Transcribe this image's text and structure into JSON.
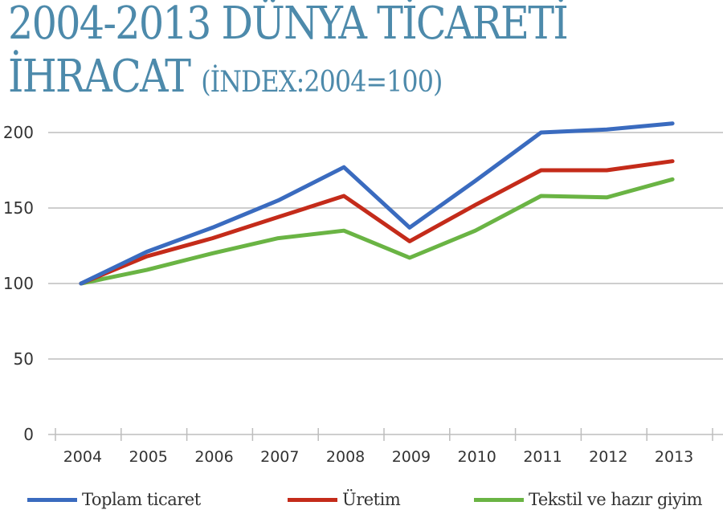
{
  "title": {
    "line1": "2004-2013 DÜNYA TİCARETİ",
    "line2": "İHRACAT",
    "subtitle": "(İNDEX:2004=100)"
  },
  "colors": {
    "title": "#4d8aab",
    "toplam": "#3a6bbf",
    "uretim": "#c42b1a",
    "tekstil": "#6ab444",
    "grid": "#bdbdbd"
  },
  "chart_data": {
    "type": "line",
    "title": "2004-2013 DÜNYA TİCARETİ İHRACAT (İNDEX:2004=100)",
    "xlabel": "",
    "ylabel": "",
    "categories": [
      "2004",
      "2005",
      "2006",
      "2007",
      "2008",
      "2009",
      "2010",
      "2011",
      "2012",
      "2013"
    ],
    "yticks": [
      "0",
      "50",
      "100",
      "150",
      "200"
    ],
    "ylim": [
      0,
      200
    ],
    "grid": true,
    "legend_position": "bottom",
    "series": [
      {
        "name": "Toplam ticaret",
        "color": "#3a6bbf",
        "values": [
          100,
          121,
          137,
          155,
          177,
          137,
          168,
          200,
          202,
          206
        ]
      },
      {
        "name": "Üretim",
        "color": "#c42b1a",
        "values": [
          100,
          118,
          130,
          144,
          158,
          128,
          152,
          175,
          175,
          181
        ]
      },
      {
        "name": "Tekstil ve hazır giyim",
        "color": "#6ab444",
        "values": [
          100,
          109,
          120,
          130,
          135,
          117,
          135,
          158,
          157,
          169
        ]
      }
    ]
  },
  "legend": [
    {
      "label": "Toplam ticaret"
    },
    {
      "label": "Üretim"
    },
    {
      "label": "Tekstil ve hazır giyim"
    }
  ]
}
